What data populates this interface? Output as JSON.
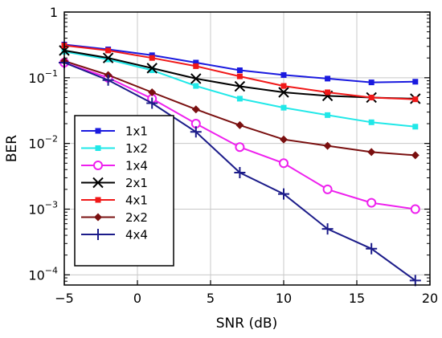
{
  "chart_data": {
    "type": "line",
    "xlabel": "SNR (dB)",
    "ylabel": "BER",
    "xlim": [
      -5,
      20
    ],
    "ylim": [
      7e-05,
      1
    ],
    "yscale": "log",
    "grid": true,
    "legend_position": "lower-left",
    "x_ticks": [
      {
        "value": -5,
        "label": "−5"
      },
      {
        "value": 0,
        "label": "0"
      },
      {
        "value": 5,
        "label": "5"
      },
      {
        "value": 10,
        "label": "10"
      },
      {
        "value": 15,
        "label": "15"
      },
      {
        "value": 20,
        "label": "20"
      }
    ],
    "y_ticks": [
      {
        "value": 1,
        "base": "1",
        "exp": ""
      },
      {
        "value": 0.1,
        "base": "10",
        "exp": "−1"
      },
      {
        "value": 0.01,
        "base": "10",
        "exp": "−2"
      },
      {
        "value": 0.001,
        "base": "10",
        "exp": "−3"
      },
      {
        "value": 0.0001,
        "base": "10",
        "exp": "−4"
      }
    ],
    "series": [
      {
        "name": "1x1",
        "color": "#1a1adf",
        "marker": "square",
        "x": [
          -5,
          -2,
          1,
          4,
          7,
          10,
          13,
          16,
          19
        ],
        "y": [
          0.32,
          0.27,
          0.22,
          0.17,
          0.13,
          0.11,
          0.097,
          0.085,
          0.087
        ]
      },
      {
        "name": "1x2",
        "color": "#20e8e8",
        "marker": "square",
        "x": [
          -5,
          -2,
          1,
          4,
          7,
          10,
          13,
          16,
          19
        ],
        "y": [
          0.25,
          0.19,
          0.13,
          0.075,
          0.048,
          0.035,
          0.027,
          0.021,
          0.018
        ]
      },
      {
        "name": "1x4",
        "color": "#ee20ee",
        "marker": "circle",
        "x": [
          -5,
          -2,
          1,
          4,
          7,
          10,
          13,
          16,
          19
        ],
        "y": [
          0.17,
          0.1,
          0.048,
          0.02,
          0.0088,
          0.005,
          0.002,
          0.00125,
          0.001
        ]
      },
      {
        "name": "2x1",
        "color": "#000000",
        "marker": "x",
        "x": [
          -5,
          -2,
          1,
          4,
          7,
          10,
          13,
          16,
          19
        ],
        "y": [
          0.26,
          0.2,
          0.14,
          0.097,
          0.074,
          0.06,
          0.053,
          0.05,
          0.048
        ]
      },
      {
        "name": "4x1",
        "color": "#f01818",
        "marker": "square",
        "x": [
          -5,
          -2,
          1,
          4,
          7,
          10,
          13,
          16,
          19
        ],
        "y": [
          0.31,
          0.26,
          0.2,
          0.15,
          0.105,
          0.075,
          0.06,
          0.05,
          0.047
        ]
      },
      {
        "name": "2x2",
        "color": "#7a1010",
        "marker": "diamond",
        "x": [
          -5,
          -2,
          1,
          4,
          7,
          10,
          13,
          16,
          19
        ],
        "y": [
          0.18,
          0.11,
          0.06,
          0.033,
          0.019,
          0.0115,
          0.0092,
          0.0074,
          0.0066
        ]
      },
      {
        "name": "4x4",
        "color": "#1c1c8a",
        "marker": "plus",
        "x": [
          -5,
          -2,
          1,
          4,
          7,
          10,
          13,
          16,
          19
        ],
        "y": [
          0.17,
          0.092,
          0.041,
          0.015,
          0.0036,
          0.0017,
          0.0005,
          0.00025,
          8.2e-05
        ]
      }
    ]
  }
}
